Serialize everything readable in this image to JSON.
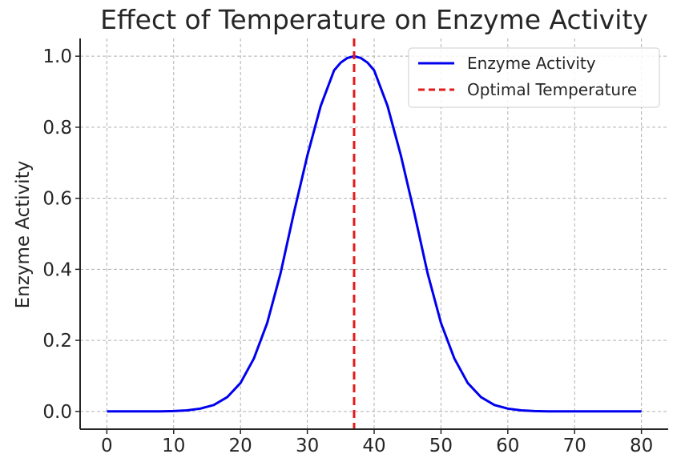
{
  "chart_data": {
    "type": "line",
    "title": "Effect of Temperature on Enzyme Activity",
    "xlabel": "",
    "ylabel": "Enzyme Activity",
    "xlim": [
      -4,
      84
    ],
    "ylim": [
      -0.05,
      1.05
    ],
    "xticks": [
      "0",
      "10",
      "20",
      "30",
      "40",
      "50",
      "60",
      "70",
      "80"
    ],
    "yticks": [
      "0.0",
      "0.2",
      "0.4",
      "0.6",
      "0.8",
      "1.0"
    ],
    "grid": true,
    "legend_position": "top-right",
    "colors": {
      "activity": "#0000ee",
      "optimal": "#e21a1a"
    },
    "series": [
      {
        "name": "Enzyme Activity",
        "style": "solid",
        "x": [
          0,
          2,
          4,
          6,
          8,
          10,
          12,
          14,
          16,
          18,
          20,
          22,
          24,
          26,
          28,
          30,
          32,
          34,
          35,
          36,
          37,
          38,
          39,
          40,
          42,
          44,
          46,
          48,
          50,
          52,
          54,
          56,
          58,
          60,
          62,
          64,
          66,
          68,
          70,
          72,
          74,
          76,
          78,
          80
        ],
        "y": [
          0.0,
          0.0,
          0.0,
          0.0,
          0.0,
          0.001,
          0.003,
          0.008,
          0.018,
          0.04,
          0.08,
          0.149,
          0.249,
          0.389,
          0.56,
          0.72,
          0.86,
          0.96,
          0.982,
          0.995,
          1.0,
          0.995,
          0.982,
          0.96,
          0.86,
          0.72,
          0.56,
          0.389,
          0.249,
          0.149,
          0.08,
          0.04,
          0.018,
          0.008,
          0.003,
          0.001,
          0.0,
          0.0,
          0.0,
          0.0,
          0.0,
          0.0,
          0.0,
          0.0
        ]
      }
    ],
    "reference_lines": [
      {
        "name": "Optimal Temperature",
        "style": "dashed",
        "x": 37
      }
    ]
  }
}
